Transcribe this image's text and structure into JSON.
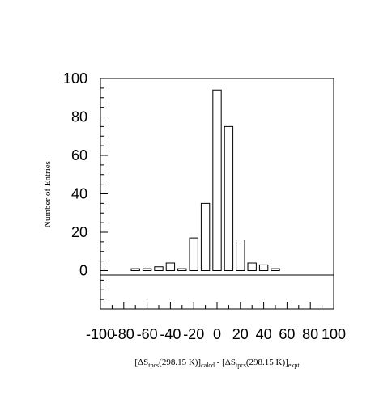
{
  "chart_data": {
    "type": "bar",
    "title": "",
    "ylabel": "Number of Entries",
    "xlabel": {
      "open": "[",
      "delta1": "ΔS",
      "sub1": "tpcs",
      "mid1": "(298.15 K)]",
      "sub2": "calcd",
      "minus": " - [",
      "delta2": "ΔS",
      "sub3": "tpcs",
      "mid2": "(298.15 K)]",
      "sub4": "expt"
    },
    "xlim": [
      -100,
      100
    ],
    "ylim": [
      -20,
      100
    ],
    "bin_width": 10,
    "x": [
      -70,
      -60,
      -50,
      -40,
      -30,
      -20,
      -10,
      0,
      10,
      20,
      30,
      40,
      50
    ],
    "values": [
      1,
      1,
      2,
      4,
      1,
      17,
      35,
      94,
      75,
      16,
      4,
      3,
      1
    ],
    "x_ticks": [
      "-100",
      "-80",
      "-60",
      "-40",
      "-20",
      "0",
      "20",
      "40",
      "60",
      "80",
      "100"
    ],
    "x_tick_values": [
      -100,
      -80,
      -60,
      -40,
      -20,
      0,
      20,
      40,
      60,
      80,
      100
    ],
    "y_ticks": [
      "100",
      "80",
      "60",
      "40",
      "20",
      "0"
    ],
    "y_tick_values": [
      100,
      80,
      60,
      40,
      20,
      0
    ],
    "grid": false,
    "bar_fill": "#ffffff",
    "bar_stroke": "#000000"
  }
}
